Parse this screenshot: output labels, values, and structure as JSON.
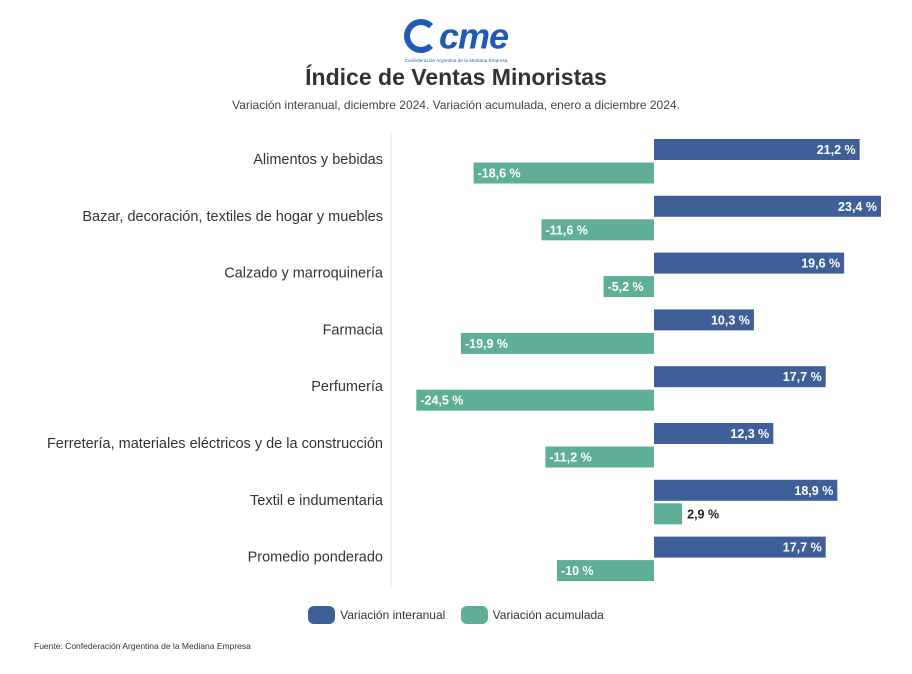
{
  "logo": {
    "text": "cme",
    "subtext": "Confederación Argentina de la Mediana Empresa"
  },
  "colors": {
    "interanual": "#3f5f98",
    "acumulada": "#5fae97",
    "brand": "#1f5bb5"
  },
  "chart_data": {
    "type": "bar",
    "orientation": "horizontal",
    "title": "Índice de Ventas Minoristas",
    "subtitle": "Variación interanual, diciembre 2024. Variación acumulada, enero a diciembre 2024.",
    "categories": [
      "Alimentos y bebidas",
      "Bazar, decoración, textiles de hogar y muebles",
      "Calzado y marroquinería",
      "Farmacia",
      "Perfumería",
      "Ferretería, materiales eléctricos y de la construcción",
      "Textil e indumentaria",
      "Promedio ponderado"
    ],
    "series": [
      {
        "name": "Variación interanual",
        "values": [
          21.2,
          23.4,
          19.6,
          10.3,
          17.7,
          12.3,
          18.9,
          17.7
        ],
        "labels": [
          "21,2 %",
          "23,4 %",
          "19,6 %",
          "10,3 %",
          "17,7 %",
          "12,3 %",
          "18,9 %",
          "17,7 %"
        ]
      },
      {
        "name": "Variación acumulada",
        "values": [
          -18.6,
          -11.6,
          -5.2,
          -19.9,
          -24.5,
          -11.2,
          2.9,
          -10
        ],
        "labels": [
          "-18,6 %",
          "-11,6 %",
          "-5,2 %",
          "-19,9 %",
          "-24,5 %",
          "-11,2 %",
          "2,9 %",
          "-10 %"
        ]
      }
    ],
    "legend": "bottom-center",
    "xlim": [
      -26,
      26
    ],
    "grid": false
  },
  "legend": {
    "interanual": "Variación interanual",
    "acumulada": "Variación acumulada"
  },
  "source": "Fuente: Confederación Argentina de la Mediana Empresa"
}
